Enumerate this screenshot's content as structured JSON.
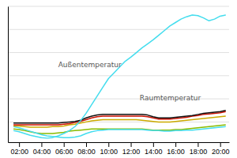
{
  "chart_data": {
    "type": "line",
    "x": [
      1.5,
      2,
      2.5,
      3,
      3.5,
      4,
      4.5,
      5,
      5.5,
      6,
      6.5,
      7,
      7.5,
      8,
      8.5,
      9,
      9.5,
      10,
      10.5,
      11,
      11.5,
      12,
      12.5,
      13,
      13.5,
      14,
      14.5,
      15,
      15.5,
      16,
      16.5,
      17,
      17.5,
      18,
      18.5,
      19,
      19.5,
      20,
      20.5
    ],
    "series": [
      {
        "color": "#88bb00",
        "values": [
          22.8,
          22.7,
          22.5,
          22.3,
          22.1,
          22.0,
          22.0,
          22.0,
          22.1,
          22.2,
          22.4,
          22.5,
          22.6,
          22.7,
          22.8,
          22.8,
          22.8,
          22.8,
          22.8,
          22.8,
          22.8,
          22.8,
          22.8,
          22.8,
          22.7,
          22.6,
          22.6,
          22.6,
          22.6,
          22.7,
          22.7,
          22.8,
          22.9,
          23.0,
          23.1,
          23.2,
          23.3,
          23.4,
          23.5
        ]
      },
      {
        "color": "#44ddee",
        "values": [
          23.2,
          23.0,
          22.7,
          22.4,
          22.1,
          21.8,
          21.6,
          21.5,
          21.4,
          21.3,
          21.3,
          21.4,
          21.6,
          22.0,
          22.3,
          22.5,
          22.6,
          22.7,
          22.7,
          22.7,
          22.7,
          22.7,
          22.7,
          22.7,
          22.6,
          22.5,
          22.5,
          22.4,
          22.4,
          22.5,
          22.5,
          22.6,
          22.6,
          22.7,
          22.8,
          22.9,
          23.0,
          23.1,
          23.2
        ]
      },
      {
        "color": "#ccaa00",
        "values": [
          23.3,
          23.3,
          23.2,
          23.1,
          23.1,
          23.1,
          23.1,
          23.2,
          23.2,
          23.3,
          23.5,
          23.6,
          23.8,
          24.0,
          24.2,
          24.3,
          24.4,
          24.4,
          24.4,
          24.4,
          24.4,
          24.4,
          24.4,
          24.3,
          24.2,
          24.1,
          24.0,
          24.0,
          24.0,
          24.1,
          24.2,
          24.3,
          24.4,
          24.5,
          24.6,
          24.7,
          24.8,
          24.9,
          25.0
        ]
      },
      {
        "color": "#cc1100",
        "values": [
          23.5,
          23.5,
          23.5,
          23.5,
          23.5,
          23.5,
          23.5,
          23.5,
          23.5,
          23.6,
          23.7,
          23.9,
          24.1,
          24.4,
          24.7,
          24.9,
          25.0,
          25.0,
          25.0,
          25.0,
          25.0,
          25.0,
          25.0,
          25.0,
          24.9,
          24.7,
          24.5,
          24.5,
          24.5,
          24.6,
          24.7,
          24.8,
          25.0,
          25.1,
          25.3,
          25.4,
          25.5,
          25.6,
          25.8
        ]
      },
      {
        "color": "#111111",
        "values": [
          23.8,
          23.8,
          23.8,
          23.8,
          23.8,
          23.8,
          23.8,
          23.8,
          23.8,
          23.9,
          24.0,
          24.1,
          24.3,
          24.7,
          25.0,
          25.2,
          25.3,
          25.3,
          25.3,
          25.3,
          25.3,
          25.3,
          25.3,
          25.3,
          25.2,
          24.9,
          24.7,
          24.7,
          24.7,
          24.8,
          24.9,
          25.0,
          25.1,
          25.3,
          25.5,
          25.6,
          25.7,
          25.8,
          26.0
        ]
      },
      {
        "color": "#44ddee",
        "values": [
          22.5,
          22.3,
          22.0,
          21.7,
          21.5,
          21.3,
          21.2,
          21.3,
          21.6,
          22.0,
          22.5,
          23.2,
          24.2,
          25.5,
          27.0,
          28.5,
          30.0,
          31.5,
          32.5,
          33.5,
          34.5,
          35.2,
          36.0,
          36.8,
          37.5,
          38.2,
          39.0,
          39.8,
          40.6,
          41.2,
          41.8,
          42.2,
          42.5,
          42.4,
          42.0,
          41.5,
          41.8,
          42.3,
          42.5
        ]
      }
    ],
    "annotations": [
      {
        "text": "Außentemperatur",
        "x": 5.5,
        "y": 33.5
      },
      {
        "text": "Raumtemperatur",
        "x": 12.8,
        "y": 27.8
      }
    ],
    "xlim": [
      1.0,
      20.8
    ],
    "xticks": [
      {
        "value": 2,
        "label": "02:00"
      },
      {
        "value": 4,
        "label": "04:00"
      },
      {
        "value": 6,
        "label": "06:00"
      },
      {
        "value": 8,
        "label": "08:00"
      },
      {
        "value": 10,
        "label": "10:00"
      },
      {
        "value": 12,
        "label": "12:00"
      },
      {
        "value": 14,
        "label": "14:00"
      },
      {
        "value": 16,
        "label": "16:00"
      },
      {
        "value": 18,
        "label": "18:00"
      },
      {
        "value": 20,
        "label": "20:00"
      }
    ],
    "ylim": [
      20.5,
      44
    ],
    "yticks": [
      24,
      28,
      32,
      36,
      40,
      44
    ],
    "grid": true,
    "tick_labels": "x"
  }
}
